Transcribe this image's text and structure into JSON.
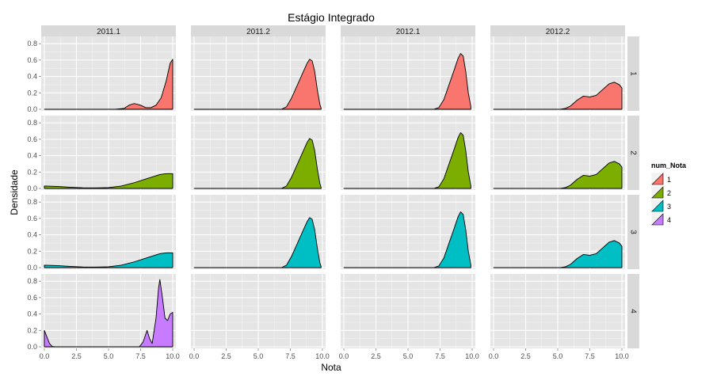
{
  "chart_data": {
    "type": "area",
    "title": "Estágio Integrado",
    "xlabel": "Nota",
    "ylabel": "Densidade",
    "xlim": [
      0,
      10
    ],
    "ylim": [
      0,
      0.85
    ],
    "x_ticks": [
      "0.0",
      "2.5",
      "5.0",
      "7.5",
      "10.0"
    ],
    "y_ticks": [
      "0.0",
      "0.2",
      "0.4",
      "0.6",
      "0.8"
    ],
    "grid": true,
    "facet_columns": [
      "2011.1",
      "2011.2",
      "2012.1",
      "2012.2"
    ],
    "facet_rows": [
      "1",
      "2",
      "3",
      "4"
    ],
    "legend": {
      "title": "num_Nota",
      "position": "right",
      "entries": [
        {
          "label": "1",
          "color": "#F8766D"
        },
        {
          "label": "2",
          "color": "#7CAE00"
        },
        {
          "label": "3",
          "color": "#00BFC4"
        },
        {
          "label": "4",
          "color": "#C77CFF"
        }
      ]
    },
    "panels": [
      {
        "row": "1",
        "col": "2011.1",
        "color": "#F8766D",
        "points": [
          [
            0,
            0
          ],
          [
            5.5,
            0
          ],
          [
            6.2,
            0.01
          ],
          [
            6.6,
            0.05
          ],
          [
            7.0,
            0.07
          ],
          [
            7.5,
            0.05
          ],
          [
            7.9,
            0.02
          ],
          [
            8.3,
            0.02
          ],
          [
            8.7,
            0.05
          ],
          [
            9.1,
            0.14
          ],
          [
            9.5,
            0.35
          ],
          [
            9.8,
            0.56
          ],
          [
            10,
            0.61
          ]
        ]
      },
      {
        "row": "1",
        "col": "2011.2",
        "color": "#F8766D",
        "points": [
          [
            0,
            0
          ],
          [
            6.8,
            0
          ],
          [
            7.2,
            0.03
          ],
          [
            7.6,
            0.14
          ],
          [
            8.0,
            0.28
          ],
          [
            8.4,
            0.42
          ],
          [
            8.8,
            0.56
          ],
          [
            9.0,
            0.61
          ],
          [
            9.2,
            0.59
          ],
          [
            9.4,
            0.46
          ],
          [
            9.6,
            0.24
          ],
          [
            9.8,
            0.06
          ],
          [
            9.9,
            0.01
          ]
        ]
      },
      {
        "row": "1",
        "col": "2012.1",
        "color": "#F8766D",
        "points": [
          [
            0,
            0
          ],
          [
            7.0,
            0
          ],
          [
            7.4,
            0.02
          ],
          [
            7.8,
            0.12
          ],
          [
            8.2,
            0.3
          ],
          [
            8.6,
            0.48
          ],
          [
            8.9,
            0.62
          ],
          [
            9.1,
            0.68
          ],
          [
            9.3,
            0.65
          ],
          [
            9.5,
            0.46
          ],
          [
            9.7,
            0.2
          ],
          [
            9.9,
            0.03
          ]
        ]
      },
      {
        "row": "1",
        "col": "2012.2",
        "color": "#F8766D",
        "points": [
          [
            0,
            0
          ],
          [
            5.2,
            0
          ],
          [
            5.6,
            0.01
          ],
          [
            6.0,
            0.04
          ],
          [
            6.5,
            0.11
          ],
          [
            7.0,
            0.16
          ],
          [
            7.5,
            0.15
          ],
          [
            8.0,
            0.17
          ],
          [
            8.5,
            0.24
          ],
          [
            9.0,
            0.31
          ],
          [
            9.4,
            0.33
          ],
          [
            9.8,
            0.3
          ],
          [
            10,
            0.26
          ]
        ]
      },
      {
        "row": "2",
        "col": "2011.1",
        "color": "#7CAE00",
        "points": [
          [
            0,
            0.03
          ],
          [
            1,
            0.025
          ],
          [
            2,
            0.015
          ],
          [
            3,
            0.008
          ],
          [
            4,
            0.006
          ],
          [
            5,
            0.01
          ],
          [
            6,
            0.03
          ],
          [
            7,
            0.07
          ],
          [
            8,
            0.12
          ],
          [
            9,
            0.17
          ],
          [
            9.5,
            0.18
          ],
          [
            10,
            0.18
          ]
        ]
      },
      {
        "row": "2",
        "col": "2011.2",
        "color": "#7CAE00",
        "points": [
          [
            0,
            0
          ],
          [
            6.8,
            0
          ],
          [
            7.2,
            0.03
          ],
          [
            7.6,
            0.14
          ],
          [
            8.0,
            0.28
          ],
          [
            8.4,
            0.42
          ],
          [
            8.8,
            0.56
          ],
          [
            9.0,
            0.61
          ],
          [
            9.2,
            0.59
          ],
          [
            9.4,
            0.46
          ],
          [
            9.6,
            0.24
          ],
          [
            9.8,
            0.06
          ],
          [
            9.9,
            0.01
          ]
        ]
      },
      {
        "row": "2",
        "col": "2012.1",
        "color": "#7CAE00",
        "points": [
          [
            0,
            0
          ],
          [
            7.0,
            0
          ],
          [
            7.4,
            0.02
          ],
          [
            7.8,
            0.12
          ],
          [
            8.2,
            0.3
          ],
          [
            8.6,
            0.48
          ],
          [
            8.9,
            0.62
          ],
          [
            9.1,
            0.68
          ],
          [
            9.3,
            0.65
          ],
          [
            9.5,
            0.46
          ],
          [
            9.7,
            0.2
          ],
          [
            9.9,
            0.03
          ]
        ]
      },
      {
        "row": "2",
        "col": "2012.2",
        "color": "#7CAE00",
        "points": [
          [
            0,
            0
          ],
          [
            5.2,
            0
          ],
          [
            5.6,
            0.01
          ],
          [
            6.0,
            0.04
          ],
          [
            6.5,
            0.11
          ],
          [
            7.0,
            0.16
          ],
          [
            7.5,
            0.15
          ],
          [
            8.0,
            0.17
          ],
          [
            8.5,
            0.24
          ],
          [
            9.0,
            0.31
          ],
          [
            9.4,
            0.33
          ],
          [
            9.8,
            0.3
          ],
          [
            10,
            0.26
          ]
        ]
      },
      {
        "row": "3",
        "col": "2011.1",
        "color": "#00BFC4",
        "points": [
          [
            0,
            0.03
          ],
          [
            1,
            0.025
          ],
          [
            2,
            0.015
          ],
          [
            3,
            0.008
          ],
          [
            4,
            0.006
          ],
          [
            5,
            0.01
          ],
          [
            6,
            0.03
          ],
          [
            7,
            0.07
          ],
          [
            8,
            0.12
          ],
          [
            9,
            0.17
          ],
          [
            9.5,
            0.18
          ],
          [
            10,
            0.18
          ]
        ]
      },
      {
        "row": "3",
        "col": "2011.2",
        "color": "#00BFC4",
        "points": [
          [
            0,
            0
          ],
          [
            6.8,
            0
          ],
          [
            7.2,
            0.03
          ],
          [
            7.6,
            0.14
          ],
          [
            8.0,
            0.28
          ],
          [
            8.4,
            0.42
          ],
          [
            8.8,
            0.56
          ],
          [
            9.0,
            0.61
          ],
          [
            9.2,
            0.59
          ],
          [
            9.4,
            0.46
          ],
          [
            9.6,
            0.24
          ],
          [
            9.8,
            0.06
          ],
          [
            9.9,
            0.01
          ]
        ]
      },
      {
        "row": "3",
        "col": "2012.1",
        "color": "#00BFC4",
        "points": [
          [
            0,
            0
          ],
          [
            7.0,
            0
          ],
          [
            7.4,
            0.02
          ],
          [
            7.8,
            0.12
          ],
          [
            8.2,
            0.3
          ],
          [
            8.6,
            0.48
          ],
          [
            8.9,
            0.62
          ],
          [
            9.1,
            0.68
          ],
          [
            9.3,
            0.65
          ],
          [
            9.5,
            0.46
          ],
          [
            9.7,
            0.2
          ],
          [
            9.9,
            0.03
          ]
        ]
      },
      {
        "row": "3",
        "col": "2012.2",
        "color": "#00BFC4",
        "points": [
          [
            0,
            0
          ],
          [
            5.2,
            0
          ],
          [
            5.6,
            0.01
          ],
          [
            6.0,
            0.04
          ],
          [
            6.5,
            0.11
          ],
          [
            7.0,
            0.16
          ],
          [
            7.5,
            0.15
          ],
          [
            8.0,
            0.17
          ],
          [
            8.5,
            0.24
          ],
          [
            9.0,
            0.31
          ],
          [
            9.4,
            0.33
          ],
          [
            9.8,
            0.3
          ],
          [
            10,
            0.26
          ]
        ]
      },
      {
        "row": "4",
        "col": "2011.1",
        "color": "#C77CFF",
        "points": [
          [
            0,
            0.2
          ],
          [
            0.2,
            0.12
          ],
          [
            0.4,
            0.04
          ],
          [
            0.6,
            0.005
          ],
          [
            0.8,
            0
          ],
          [
            7.4,
            0
          ],
          [
            7.7,
            0.06
          ],
          [
            8.0,
            0.2
          ],
          [
            8.2,
            0.1
          ],
          [
            8.4,
            0.04
          ],
          [
            8.7,
            0.35
          ],
          [
            8.9,
            0.72
          ],
          [
            9.0,
            0.82
          ],
          [
            9.2,
            0.6
          ],
          [
            9.4,
            0.35
          ],
          [
            9.6,
            0.32
          ],
          [
            9.8,
            0.4
          ],
          [
            10,
            0.42
          ]
        ]
      }
    ]
  }
}
